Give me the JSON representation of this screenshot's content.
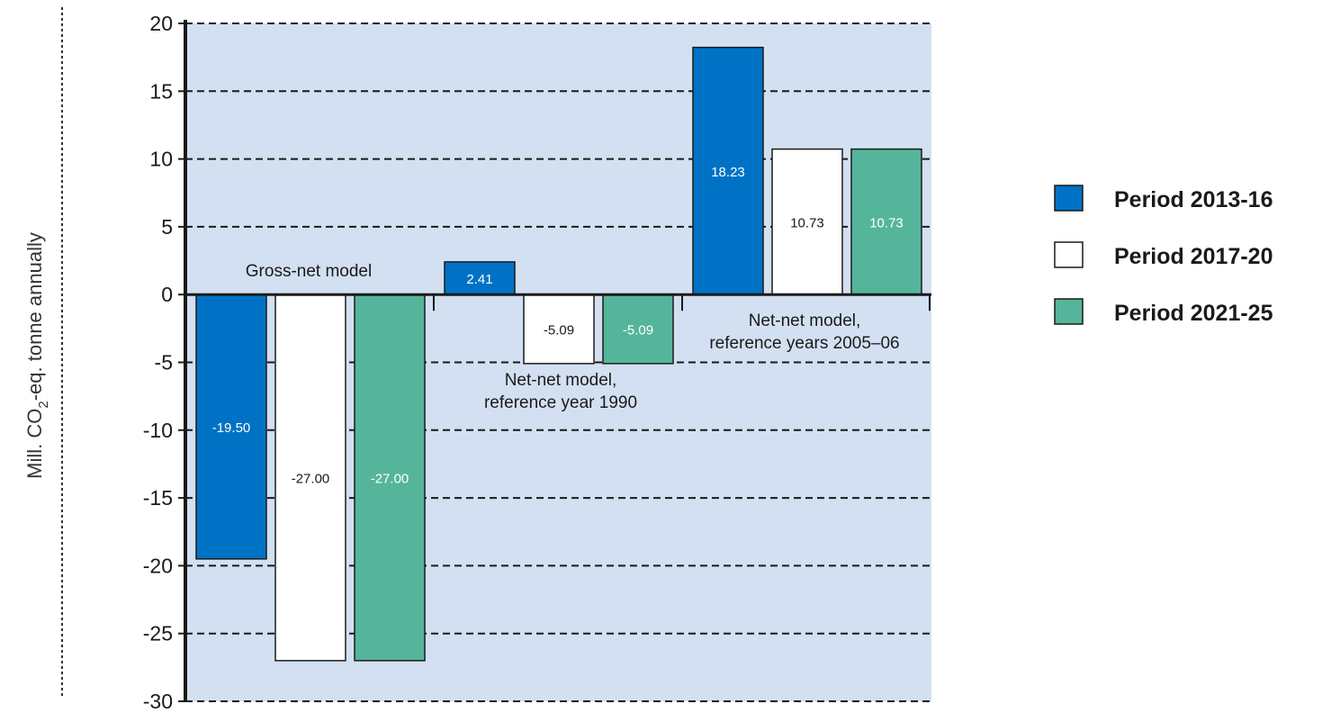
{
  "chart_data": {
    "type": "bar",
    "ylabel": {
      "main": "Mill. CO",
      "sub": "2",
      "rest": "-eq. tonne annually"
    },
    "ylim": [
      -30,
      20
    ],
    "yticks": [
      -30,
      -25,
      -20,
      -15,
      -10,
      -5,
      0,
      5,
      10,
      15,
      20
    ],
    "grid": true,
    "legend_position": "right",
    "groups": [
      {
        "label_lines": [
          "Gross-net model"
        ]
      },
      {
        "label_lines": [
          "Net-net model,",
          "reference year 1990"
        ]
      },
      {
        "label_lines": [
          "Net-net model,",
          "reference years 2005–06"
        ]
      }
    ],
    "series": [
      {
        "name": "Period 2013-16",
        "color": "#0072c6",
        "label_color": "#ffffff",
        "values": [
          -19.5,
          2.41,
          18.23
        ],
        "labels": [
          "-19.50",
          "2.41",
          "18.23"
        ]
      },
      {
        "name": "Period 2017-20",
        "color": "#ffffff",
        "label_color": "#1a1a1a",
        "values": [
          -27.0,
          -5.09,
          10.73
        ],
        "labels": [
          "-27.00",
          "-5.09",
          "10.73"
        ]
      },
      {
        "name": "Period 2021-25",
        "color": "#55b59b",
        "label_color": "#ffffff",
        "values": [
          -27.0,
          -5.09,
          10.73
        ],
        "labels": [
          "-27.00",
          "-5.09",
          "10.73"
        ]
      }
    ],
    "plot_background": "#d3e0f1"
  }
}
